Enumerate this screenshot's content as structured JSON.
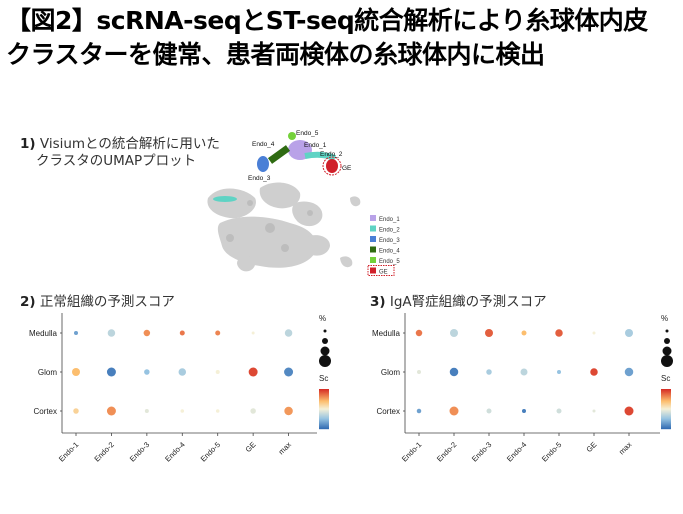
{
  "title": {
    "line1": "【図2】scRNA-seqとST-seq統合解析により糸球体内皮",
    "line2": "クラスターを健常、患者両検体の糸球体内に検出"
  },
  "section1": {
    "num": "1)",
    "line1": "Visiumとの統合解析に用いた",
    "line2": "クラスタのUMAPプロット"
  },
  "section2": {
    "num": "2)",
    "label": "正常組織の予測スコア"
  },
  "section3": {
    "num": "3)",
    "label": "IgA腎症組織の予測スコア"
  },
  "umap": {
    "cluster_labels": [
      "Endo_5",
      "Endo_4",
      "Endo_1",
      "Endo_2",
      "Endo_3",
      "GE"
    ],
    "legend": [
      {
        "label": "Endo_1",
        "color": "#b9a2e8"
      },
      {
        "label": "Endo_2",
        "color": "#5fd3c4"
      },
      {
        "label": "Endo_3",
        "color": "#4a7fd6"
      },
      {
        "label": "Endo_4",
        "color": "#2f6b12"
      },
      {
        "label": "Endo_5",
        "color": "#74d13a"
      },
      {
        "label": "GE",
        "color": "#d0202a"
      }
    ]
  },
  "legend_partial": {
    "size_title": "%",
    "color_title": "Sc"
  },
  "chart_data": [
    {
      "type": "scatter",
      "subtype": "dot-plot",
      "title": "正常組織の予測スコア",
      "categories": [
        "Endo-1",
        "Endo-2",
        "Endo-3",
        "Endo-4",
        "Endo-5",
        "GE",
        "max"
      ],
      "rows": [
        "Medulla",
        "Glom",
        "Cortex"
      ],
      "values": {
        "Medulla": [
          0.15,
          0.35,
          0.8,
          0.85,
          0.82,
          0.5,
          0.35
        ],
        "Glom": [
          0.7,
          0.05,
          0.25,
          0.3,
          0.5,
          0.95,
          0.08
        ],
        "Cortex": [
          0.62,
          0.8,
          0.45,
          0.5,
          0.5,
          0.45,
          0.78
        ]
      },
      "sizes": {
        "Medulla": [
          0.2,
          0.55,
          0.45,
          0.3,
          0.3,
          0.1,
          0.55
        ],
        "Glom": [
          0.6,
          0.7,
          0.35,
          0.55,
          0.2,
          0.7,
          0.7
        ],
        "Cortex": [
          0.35,
          0.7,
          0.2,
          0.15,
          0.15,
          0.35,
          0.65
        ]
      }
    },
    {
      "type": "scatter",
      "subtype": "dot-plot",
      "title": "IgA腎症組織の予測スコア",
      "categories": [
        "Endo-1",
        "Endo-2",
        "Endo-3",
        "Endo-4",
        "Endo-5",
        "GE",
        "max"
      ],
      "rows": [
        "Medulla",
        "Glom",
        "Cortex"
      ],
      "values": {
        "Medulla": [
          0.85,
          0.35,
          0.9,
          0.7,
          0.9,
          0.5,
          0.3
        ],
        "Glom": [
          0.45,
          0.05,
          0.3,
          0.35,
          0.25,
          0.95,
          0.15
        ],
        "Cortex": [
          0.15,
          0.8,
          0.4,
          0.05,
          0.4,
          0.45,
          0.95
        ]
      },
      "sizes": {
        "Medulla": [
          0.45,
          0.6,
          0.6,
          0.3,
          0.55,
          0.1,
          0.6
        ],
        "Glom": [
          0.2,
          0.65,
          0.35,
          0.5,
          0.2,
          0.55,
          0.65
        ],
        "Cortex": [
          0.25,
          0.7,
          0.3,
          0.2,
          0.3,
          0.1,
          0.7
        ]
      }
    }
  ]
}
